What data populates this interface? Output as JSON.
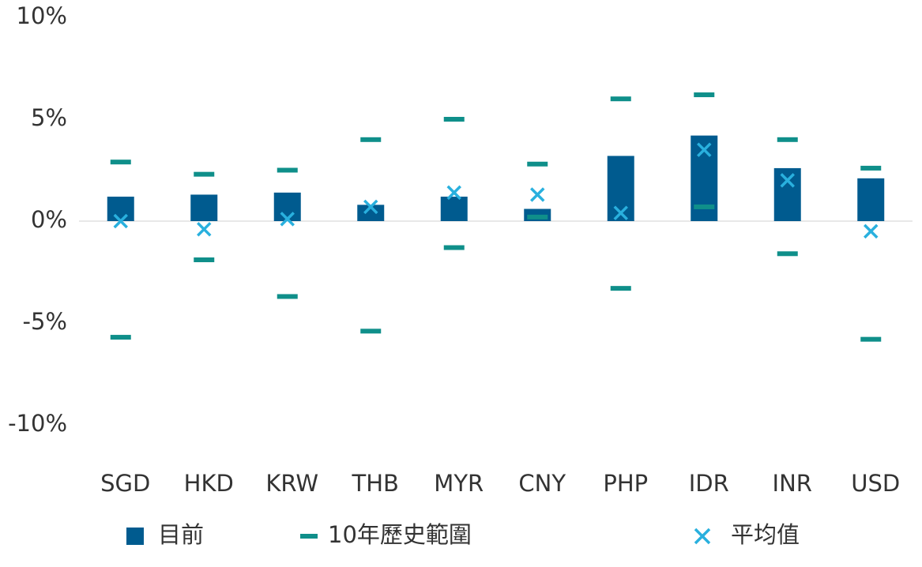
{
  "chart_data": {
    "type": "bar",
    "categories": [
      "SGD",
      "HKD",
      "KRW",
      "THB",
      "MYR",
      "CNY",
      "PHP",
      "IDR",
      "INR",
      "USD"
    ],
    "series": [
      {
        "name": "目前",
        "color": "#005b8f",
        "values": [
          1.2,
          1.3,
          1.4,
          0.8,
          1.2,
          0.6,
          3.2,
          4.2,
          2.6,
          2.1
        ]
      },
      {
        "name": "10年歷史範圍",
        "color": "#0f8f8a",
        "high": [
          2.9,
          2.3,
          2.5,
          4.0,
          5.0,
          2.8,
          6.0,
          6.2,
          4.0,
          2.6
        ],
        "low": [
          -5.7,
          -1.9,
          -3.7,
          -5.4,
          -1.3,
          0.2,
          -3.3,
          0.7,
          -1.6,
          -5.8
        ]
      },
      {
        "name": "平均值",
        "color": "#29b0de",
        "values": [
          0.0,
          -0.4,
          0.1,
          0.7,
          1.4,
          1.3,
          0.4,
          3.5,
          2.0,
          -0.5
        ]
      }
    ],
    "ylim": [
      -10,
      10
    ],
    "yticks": [
      {
        "value": 10,
        "label": "10%"
      },
      {
        "value": 5,
        "label": "5%"
      },
      {
        "value": 0,
        "label": "0%"
      },
      {
        "value": -5,
        "label": "-5%"
      },
      {
        "value": -10,
        "label": "-10%"
      }
    ]
  }
}
